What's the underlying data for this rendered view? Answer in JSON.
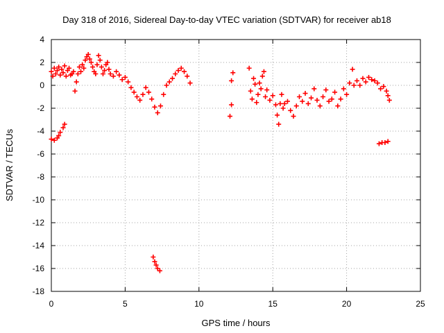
{
  "chart_data": {
    "type": "scatter",
    "title": "Day 318 of 2016, Sidereal Day-to-day VTEC variation (SDTVAR) for receiver ab18",
    "xlabel": "GPS time / hours",
    "ylabel": "SDTVAR / TECUs",
    "xlim": [
      0,
      25
    ],
    "ylim": [
      -18,
      4
    ],
    "xticks": [
      0,
      5,
      10,
      15,
      20,
      25
    ],
    "yticks": [
      4,
      2,
      0,
      -2,
      -4,
      -6,
      -8,
      -10,
      -12,
      -14,
      -16,
      -18
    ],
    "grid": true,
    "marker": "+",
    "marker_color": "#ff0000",
    "series": [
      {
        "name": "SDTVAR",
        "points": [
          [
            0.0,
            1.2
          ],
          [
            0.1,
            0.8
          ],
          [
            0.2,
            1.5
          ],
          [
            0.3,
            1.0
          ],
          [
            0.4,
            1.3
          ],
          [
            0.5,
            1.6
          ],
          [
            0.6,
            0.9
          ],
          [
            0.7,
            1.4
          ],
          [
            0.8,
            1.1
          ],
          [
            0.9,
            1.7
          ],
          [
            1.0,
            0.8
          ],
          [
            1.1,
            1.3
          ],
          [
            1.2,
            1.5
          ],
          [
            1.3,
            0.9
          ],
          [
            1.4,
            1.0
          ],
          [
            1.5,
            1.2
          ],
          [
            1.6,
            -0.5
          ],
          [
            1.7,
            0.3
          ],
          [
            1.8,
            1.0
          ],
          [
            1.9,
            1.6
          ],
          [
            2.0,
            1.2
          ],
          [
            2.1,
            1.8
          ],
          [
            2.2,
            1.5
          ],
          [
            2.3,
            2.2
          ],
          [
            2.4,
            2.5
          ],
          [
            2.5,
            2.7
          ],
          [
            2.6,
            2.3
          ],
          [
            2.7,
            2.0
          ],
          [
            2.8,
            1.6
          ],
          [
            2.9,
            1.2
          ],
          [
            3.0,
            1.0
          ],
          [
            3.1,
            1.8
          ],
          [
            3.2,
            2.6
          ],
          [
            3.3,
            2.2
          ],
          [
            3.4,
            1.6
          ],
          [
            3.5,
            1.0
          ],
          [
            3.6,
            1.3
          ],
          [
            3.7,
            1.8
          ],
          [
            3.8,
            2.0
          ],
          [
            3.9,
            1.4
          ],
          [
            4.0,
            1.0
          ],
          [
            4.2,
            0.8
          ],
          [
            4.4,
            1.2
          ],
          [
            4.6,
            0.9
          ],
          [
            4.8,
            0.5
          ],
          [
            5.0,
            0.7
          ],
          [
            5.2,
            0.3
          ],
          [
            5.4,
            -0.2
          ],
          [
            5.6,
            -0.6
          ],
          [
            5.8,
            -1.0
          ],
          [
            6.0,
            -1.3
          ],
          [
            6.2,
            -0.8
          ],
          [
            6.4,
            -0.2
          ],
          [
            6.6,
            -0.6
          ],
          [
            6.8,
            -1.2
          ],
          [
            7.0,
            -1.9
          ],
          [
            7.2,
            -2.4
          ],
          [
            7.4,
            -1.8
          ],
          [
            7.6,
            -0.8
          ],
          [
            7.8,
            0.0
          ],
          [
            8.0,
            0.3
          ],
          [
            8.2,
            0.6
          ],
          [
            8.4,
            1.0
          ],
          [
            8.6,
            1.3
          ],
          [
            8.8,
            1.5
          ],
          [
            9.0,
            1.2
          ],
          [
            9.2,
            0.8
          ],
          [
            9.4,
            0.2
          ],
          [
            0.0,
            -4.7
          ],
          [
            0.2,
            -4.8
          ],
          [
            0.4,
            -4.6
          ],
          [
            0.5,
            -4.4
          ],
          [
            0.6,
            -4.1
          ],
          [
            0.8,
            -3.7
          ],
          [
            0.9,
            -3.4
          ],
          [
            6.9,
            -15.0
          ],
          [
            7.0,
            -15.4
          ],
          [
            7.1,
            -15.7
          ],
          [
            7.2,
            -16.0
          ],
          [
            7.35,
            -16.2
          ],
          [
            12.1,
            -2.7
          ],
          [
            12.2,
            -1.7
          ],
          [
            12.2,
            0.4
          ],
          [
            12.3,
            1.1
          ],
          [
            13.4,
            1.5
          ],
          [
            13.5,
            -0.5
          ],
          [
            13.6,
            -1.2
          ],
          [
            13.7,
            0.6
          ],
          [
            13.8,
            0.1
          ],
          [
            13.9,
            -1.5
          ],
          [
            14.0,
            -0.8
          ],
          [
            14.1,
            0.2
          ],
          [
            14.2,
            -0.3
          ],
          [
            14.3,
            0.8
          ],
          [
            14.4,
            1.2
          ],
          [
            14.5,
            -1.0
          ],
          [
            14.6,
            -0.4
          ],
          [
            14.8,
            -1.3
          ],
          [
            15.0,
            -0.9
          ],
          [
            15.2,
            -1.7
          ],
          [
            15.3,
            -2.6
          ],
          [
            15.4,
            -3.4
          ],
          [
            15.5,
            -1.6
          ],
          [
            15.6,
            -0.8
          ],
          [
            15.7,
            -2.0
          ],
          [
            15.8,
            -1.6
          ],
          [
            16.0,
            -1.4
          ],
          [
            16.2,
            -2.2
          ],
          [
            16.4,
            -2.7
          ],
          [
            16.6,
            -1.8
          ],
          [
            16.8,
            -1.0
          ],
          [
            17.0,
            -1.4
          ],
          [
            17.2,
            -0.7
          ],
          [
            17.4,
            -1.6
          ],
          [
            17.6,
            -1.1
          ],
          [
            17.8,
            -0.3
          ],
          [
            18.0,
            -1.3
          ],
          [
            18.2,
            -1.8
          ],
          [
            18.4,
            -1.0
          ],
          [
            18.6,
            -0.4
          ],
          [
            18.8,
            -1.4
          ],
          [
            19.0,
            -1.2
          ],
          [
            19.2,
            -0.6
          ],
          [
            19.4,
            -1.8
          ],
          [
            19.6,
            -1.2
          ],
          [
            19.8,
            -0.3
          ],
          [
            20.0,
            -0.8
          ],
          [
            20.2,
            0.2
          ],
          [
            20.4,
            1.4
          ],
          [
            20.5,
            0.0
          ],
          [
            20.7,
            0.4
          ],
          [
            20.9,
            0.0
          ],
          [
            21.1,
            0.6
          ],
          [
            21.3,
            0.3
          ],
          [
            21.5,
            0.7
          ],
          [
            21.7,
            0.5
          ],
          [
            21.9,
            0.4
          ],
          [
            22.1,
            0.2
          ],
          [
            22.3,
            -0.3
          ],
          [
            22.5,
            -0.1
          ],
          [
            22.7,
            -0.5
          ],
          [
            22.8,
            -0.9
          ],
          [
            22.9,
            -1.3
          ],
          [
            22.2,
            -5.1
          ],
          [
            22.4,
            -5.0
          ],
          [
            22.6,
            -5.0
          ],
          [
            22.8,
            -4.9
          ]
        ]
      }
    ]
  }
}
